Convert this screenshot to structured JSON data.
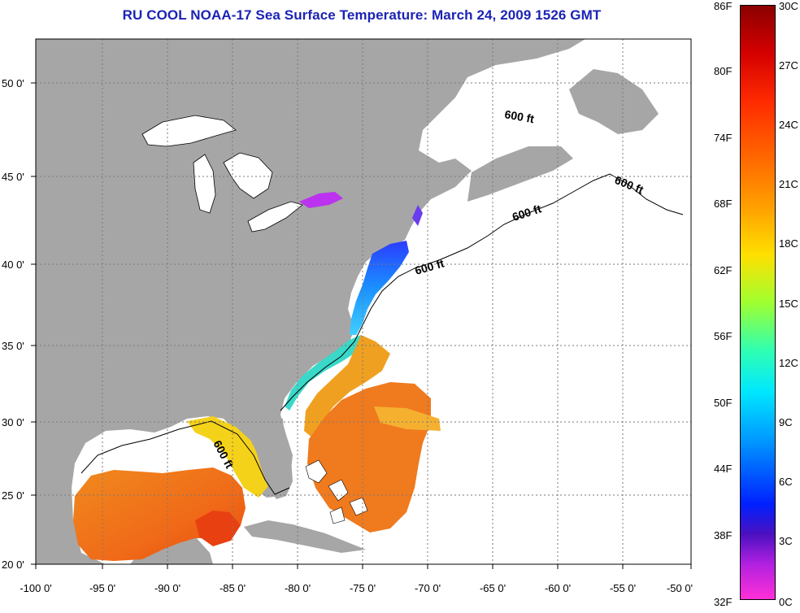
{
  "title": "RU COOL  NOAA-17  Sea Surface Temperature:  March 24, 2009 1526 GMT",
  "map": {
    "lon_ticks": [
      "-100 0'",
      "-95 0'",
      "-90 0'",
      "-85 0'",
      "-80 0'",
      "-75 0'",
      "-70 0'",
      "-65 0'",
      "-60 0'",
      "-55 0'",
      "-50 0'"
    ],
    "lat_ticks": [
      "50 0'",
      "45 0'",
      "40 0'",
      "35 0'",
      "30 0'",
      "25 0'",
      "20 0'"
    ],
    "contour_labels": [
      "600 ft",
      "600 ft",
      "600 ft",
      "600 ft",
      "600 ft"
    ],
    "colors": {
      "land": "#a6a6a6",
      "ocean_no_data": "#ffffff",
      "grid": "#808080"
    }
  },
  "colorbar": {
    "fahrenheit_labels": [
      "86F",
      "80F",
      "74F",
      "68F",
      "62F",
      "56F",
      "50F",
      "44F",
      "38F",
      "32F"
    ],
    "celsius_labels": [
      "30C",
      "27C",
      "24C",
      "21C",
      "18C",
      "15C",
      "12C",
      "9C",
      "6C",
      "3C",
      "0C"
    ],
    "range_c": [
      0,
      30
    ]
  }
}
